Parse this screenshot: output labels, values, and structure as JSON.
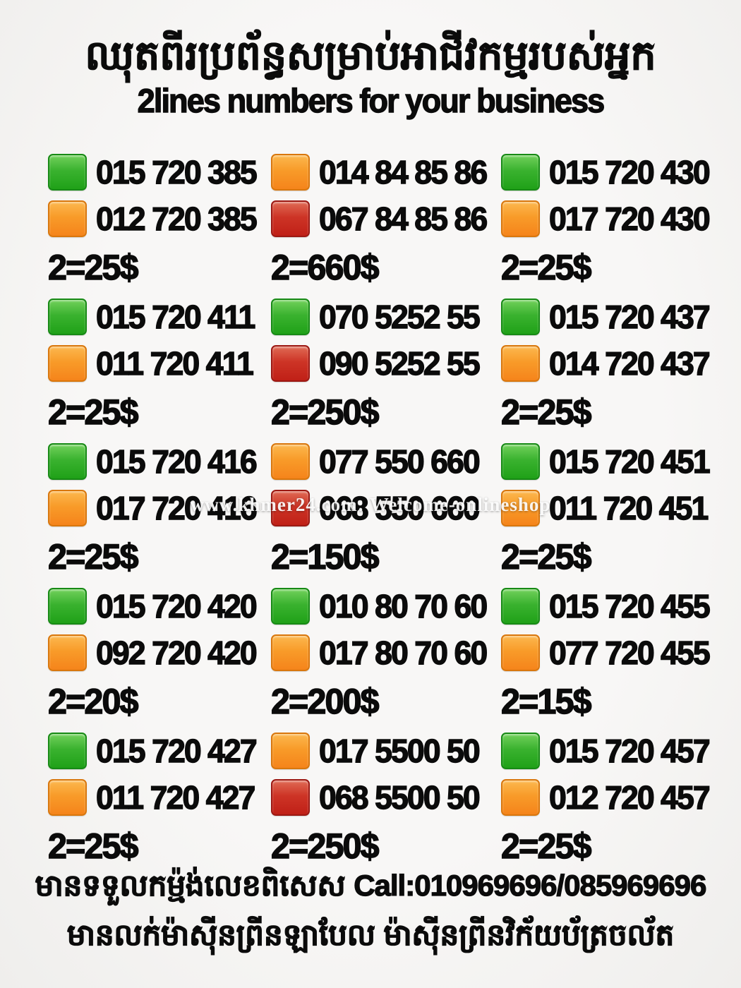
{
  "page": {
    "title_khmer": "ឈុតពីរប្រព័ន្ធសម្រាប់អាជីវកម្មរបស់អ្នក",
    "subtitle": "2lines numbers for your business",
    "watermark": "www.khmer24.com: Welcome-onlineshop"
  },
  "colors": {
    "green": "#20a118",
    "orange": "#f5841b",
    "red": "#c02017",
    "text": "#0b0b0b",
    "background": "#f5f4f2"
  },
  "listings": [
    {
      "lines": [
        {
          "color": "green",
          "number": "015 720 385"
        },
        {
          "color": "orange",
          "number": "012 720 385"
        }
      ],
      "price": "2=25$"
    },
    {
      "lines": [
        {
          "color": "orange",
          "number": "014 84 85 86"
        },
        {
          "color": "red",
          "number": "067 84 85 86"
        }
      ],
      "price": "2=660$"
    },
    {
      "lines": [
        {
          "color": "green",
          "number": "015 720 430"
        },
        {
          "color": "orange",
          "number": "017 720 430"
        }
      ],
      "price": "2=25$"
    },
    {
      "lines": [
        {
          "color": "green",
          "number": "015 720 411"
        },
        {
          "color": "orange",
          "number": "011 720 411"
        }
      ],
      "price": "2=25$"
    },
    {
      "lines": [
        {
          "color": "green",
          "number": "070 5252 55"
        },
        {
          "color": "red",
          "number": "090 5252 55"
        }
      ],
      "price": "2=250$"
    },
    {
      "lines": [
        {
          "color": "green",
          "number": "015 720 437"
        },
        {
          "color": "orange",
          "number": "014 720 437"
        }
      ],
      "price": "2=25$"
    },
    {
      "lines": [
        {
          "color": "green",
          "number": "015 720 416"
        },
        {
          "color": "orange",
          "number": "017 720 416"
        }
      ],
      "price": "2=25$"
    },
    {
      "lines": [
        {
          "color": "orange",
          "number": "077 550 660"
        },
        {
          "color": "red",
          "number": "068 550 660"
        }
      ],
      "price": "2=150$"
    },
    {
      "lines": [
        {
          "color": "green",
          "number": "015 720 451"
        },
        {
          "color": "orange",
          "number": "011 720 451"
        }
      ],
      "price": "2=25$"
    },
    {
      "lines": [
        {
          "color": "green",
          "number": "015 720 420"
        },
        {
          "color": "orange",
          "number": "092 720 420"
        }
      ],
      "price": "2=20$"
    },
    {
      "lines": [
        {
          "color": "green",
          "number": "010 80 70 60"
        },
        {
          "color": "orange",
          "number": "017 80 70 60"
        }
      ],
      "price": "2=200$"
    },
    {
      "lines": [
        {
          "color": "green",
          "number": "015 720 455"
        },
        {
          "color": "orange",
          "number": "077 720 455"
        }
      ],
      "price": "2=15$"
    },
    {
      "lines": [
        {
          "color": "green",
          "number": "015 720 427"
        },
        {
          "color": "orange",
          "number": "011 720 427"
        }
      ],
      "price": "2=25$"
    },
    {
      "lines": [
        {
          "color": "orange",
          "number": "017 5500 50"
        },
        {
          "color": "red",
          "number": "068 5500 50"
        }
      ],
      "price": "2=250$"
    },
    {
      "lines": [
        {
          "color": "green",
          "number": "015 720 457"
        },
        {
          "color": "orange",
          "number": "012 720 457"
        }
      ],
      "price": "2=25$"
    }
  ],
  "footer": {
    "line1_khmer": "មានទទួលកម្ម៉ង់លេខពិសេស ",
    "line1_call": "Call:010969696/085969696",
    "line2_khmer": "មានលក់ម៉ាស៊ីនព្រីនឡាបែល ម៉ាស៊ីនព្រីនវិក័យប័ត្រចល័ត"
  }
}
